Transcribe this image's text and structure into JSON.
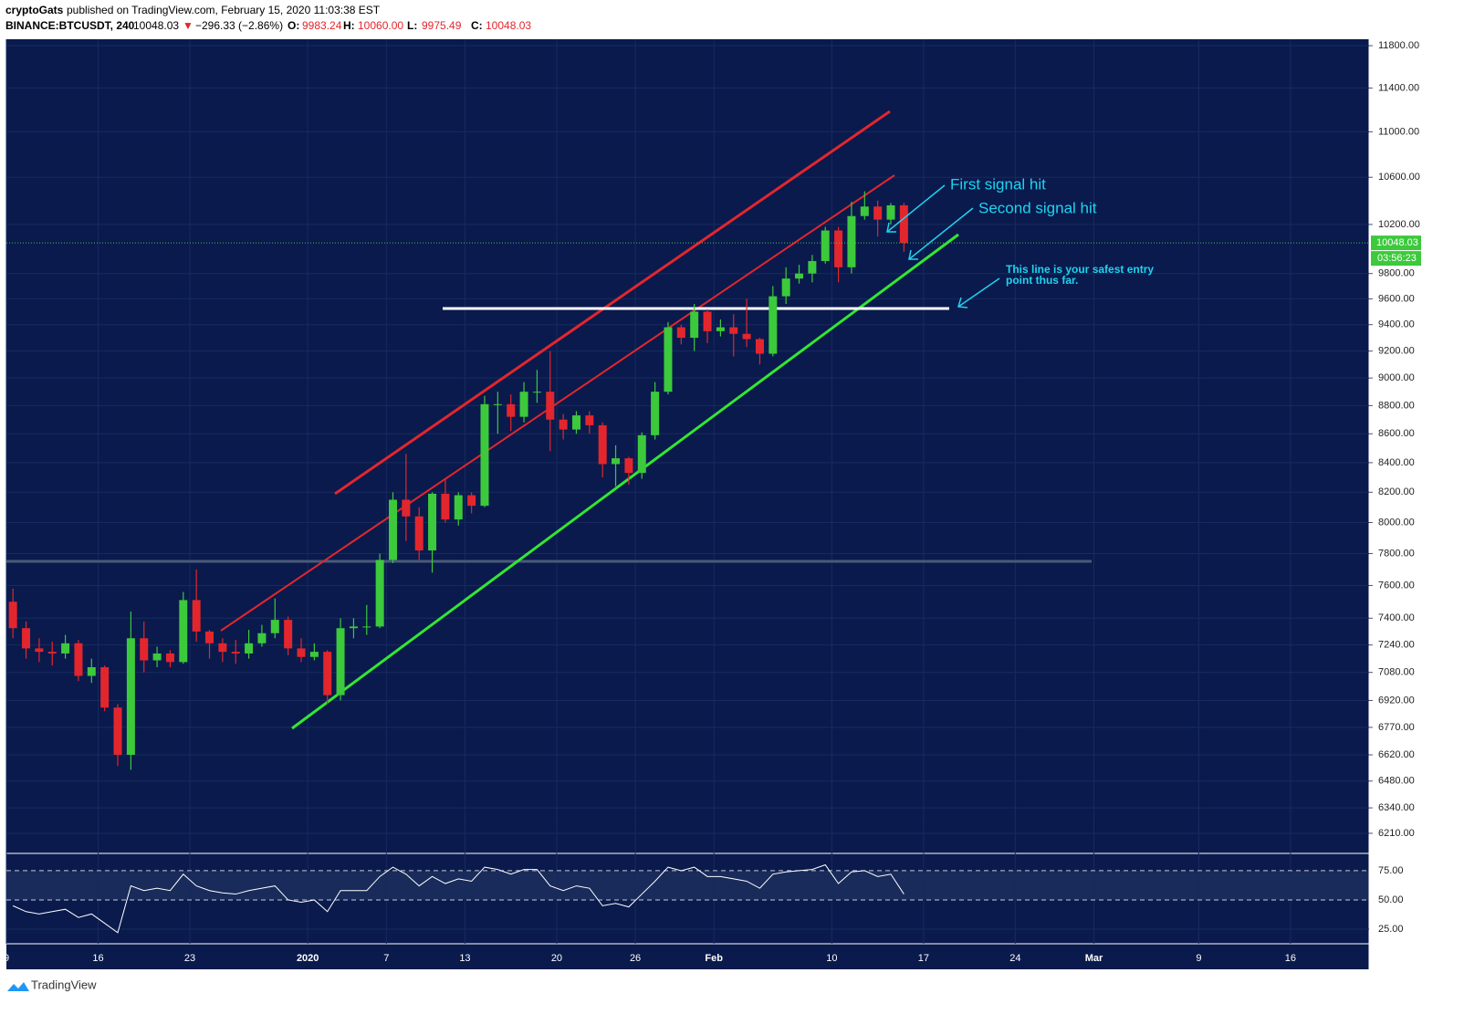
{
  "header": {
    "publisher": "cryptoGats",
    "published": "published on TradingView.com, February 15, 2020 11:03:38 EST",
    "symbol": "BINANCE:BTCUSDT, 240",
    "change": "−296.33 (−2.86%)",
    "ohlc": [
      {
        "label": "O:",
        "value": "9983.24"
      },
      {
        "label": "H:",
        "value": "10060.00"
      },
      {
        "label": "L:",
        "value": "9975.49"
      },
      {
        "label": "C:",
        "value": "10048.03"
      }
    ],
    "countdown": "03:56:23",
    "brand": "TradingView"
  },
  "chart_data": {
    "type": "candlestick",
    "log_scale": true,
    "grid": true,
    "up_color": "#3cc93c",
    "down_color": "#e3262d",
    "annotations": [
      "First signal hit",
      "Second signal hit",
      "This line is your safest entry point thus far."
    ],
    "x": [
      "2019-12-09",
      "2019-12-10",
      "2019-12-11",
      "2019-12-12",
      "2019-12-13",
      "2019-12-14",
      "2019-12-15",
      "2019-12-16",
      "2019-12-17",
      "2019-12-18",
      "2019-12-19",
      "2019-12-20",
      "2019-12-21",
      "2019-12-22",
      "2019-12-23",
      "2019-12-24",
      "2019-12-25",
      "2019-12-26",
      "2019-12-27",
      "2019-12-28",
      "2019-12-29",
      "2019-12-30",
      "2019-12-31",
      "2020-01-01",
      "2020-01-02",
      "2020-01-03",
      "2020-01-04",
      "2020-01-05",
      "2020-01-06",
      "2020-01-07",
      "2020-01-08",
      "2020-01-09",
      "2020-01-10",
      "2020-01-11",
      "2020-01-12",
      "2020-01-13",
      "2020-01-14",
      "2020-01-15",
      "2020-01-16",
      "2020-01-17",
      "2020-01-18",
      "2020-01-19",
      "2020-01-20",
      "2020-01-21",
      "2020-01-22",
      "2020-01-23",
      "2020-01-24",
      "2020-01-25",
      "2020-01-26",
      "2020-01-27",
      "2020-01-28",
      "2020-01-29",
      "2020-01-30",
      "2020-01-31",
      "2020-02-01",
      "2020-02-02",
      "2020-02-03",
      "2020-02-04",
      "2020-02-05",
      "2020-02-06",
      "2020-02-07",
      "2020-02-08",
      "2020-02-09",
      "2020-02-10",
      "2020-02-11",
      "2020-02-12",
      "2020-02-13",
      "2020-02-14",
      "2020-02-15"
    ],
    "open": [
      7500,
      7340,
      7220,
      7200,
      7190,
      7250,
      7060,
      7110,
      6880,
      6620,
      7280,
      7150,
      7190,
      7140,
      7510,
      7320,
      7250,
      7200,
      7190,
      7250,
      7310,
      7390,
      7220,
      7170,
      7200,
      6950,
      7340,
      7350,
      7350,
      7760,
      8150,
      8040,
      7820,
      8190,
      8020,
      8180,
      8110,
      8810,
      8810,
      8720,
      8900,
      8900,
      8700,
      8630,
      8730,
      8660,
      8390,
      8430,
      8330,
      8590,
      8900,
      9380,
      9300,
      9500,
      9350,
      9380,
      9330,
      9290,
      9180,
      9620,
      9760,
      9800,
      9900,
      10150,
      9850,
      10270,
      10350,
      10240,
      10360
    ],
    "high": [
      7580,
      7380,
      7280,
      7260,
      7300,
      7270,
      7160,
      7120,
      6900,
      7440,
      7380,
      7230,
      7210,
      7560,
      7700,
      7330,
      7280,
      7270,
      7330,
      7360,
      7520,
      7410,
      7280,
      7250,
      7210,
      7400,
      7400,
      7480,
      7800,
      8200,
      8460,
      8100,
      8200,
      8290,
      8200,
      8200,
      8870,
      8900,
      8880,
      8970,
      9060,
      9200,
      8740,
      8760,
      8760,
      8680,
      8520,
      8440,
      8610,
      8970,
      9420,
      9400,
      9560,
      9520,
      9440,
      9480,
      9600,
      9300,
      9700,
      9850,
      9870,
      9950,
      10180,
      10180,
      10390,
      10480,
      10400,
      10380,
      10380
    ],
    "low": [
      7280,
      7160,
      7140,
      7120,
      7160,
      7030,
      7020,
      6860,
      6560,
      6540,
      7080,
      7110,
      7110,
      7130,
      7260,
      7160,
      7140,
      7130,
      7160,
      7230,
      7280,
      7180,
      7140,
      7150,
      6900,
      6920,
      7280,
      7300,
      7340,
      7740,
      7880,
      7760,
      7680,
      8000,
      7980,
      8060,
      8100,
      8600,
      8620,
      8680,
      8820,
      8480,
      8560,
      8600,
      8600,
      8300,
      8240,
      8250,
      8290,
      8560,
      8880,
      9250,
      9200,
      9260,
      9310,
      9160,
      9230,
      9100,
      9160,
      9560,
      9720,
      9730,
      9880,
      9730,
      9800,
      10240,
      10100,
      10200,
      9975.49
    ],
    "close": [
      7340,
      7220,
      7200,
      7190,
      7250,
      7060,
      7110,
      6880,
      6620,
      7280,
      7150,
      7190,
      7140,
      7510,
      7320,
      7250,
      7200,
      7190,
      7250,
      7310,
      7390,
      7220,
      7170,
      7200,
      6950,
      7340,
      7350,
      7350,
      7760,
      8150,
      8040,
      7820,
      8190,
      8020,
      8180,
      8110,
      8810,
      8810,
      8720,
      8900,
      8900,
      8700,
      8630,
      8730,
      8660,
      8390,
      8430,
      8330,
      8590,
      8900,
      9380,
      9300,
      9500,
      9350,
      9380,
      9330,
      9290,
      9180,
      9620,
      9760,
      9800,
      9900,
      10150,
      9850,
      10270,
      10350,
      10240,
      10360,
      10048.03
    ],
    "xlim": [
      "2019-12-09",
      "2020-03-22"
    ],
    "xticks": [
      {
        "value": "2019-12-09",
        "label": "9"
      },
      {
        "value": "2019-12-16",
        "label": "16"
      },
      {
        "value": "2019-12-23",
        "label": "23"
      },
      {
        "value": "2020-01-01",
        "label": "2020"
      },
      {
        "value": "2020-01-07",
        "label": "7"
      },
      {
        "value": "2020-01-13",
        "label": "13"
      },
      {
        "value": "2020-01-20",
        "label": "20"
      },
      {
        "value": "2020-01-26",
        "label": "26"
      },
      {
        "value": "2020-02-01",
        "label": "Feb"
      },
      {
        "value": "2020-02-10",
        "label": "10"
      },
      {
        "value": "2020-02-17",
        "label": "17"
      },
      {
        "value": "2020-02-24",
        "label": "24"
      },
      {
        "value": "2020-03-01",
        "label": "Mar"
      },
      {
        "value": "2020-03-09",
        "label": "9"
      },
      {
        "value": "2020-03-16",
        "label": "16"
      }
    ],
    "ylim": [
      6109,
      11862
    ],
    "yticks": [
      {
        "value": 11800,
        "label": "11800.00"
      },
      {
        "value": 11400,
        "label": "11400.00"
      },
      {
        "value": 11000,
        "label": "11000.00"
      },
      {
        "value": 10600,
        "label": "10600.00"
      },
      {
        "value": 10200,
        "label": "10200.00"
      },
      {
        "value": 9800,
        "label": "9800.00"
      },
      {
        "value": 9600,
        "label": "9600.00"
      },
      {
        "value": 9400,
        "label": "9400.00"
      },
      {
        "value": 9200,
        "label": "9200.00"
      },
      {
        "value": 9000,
        "label": "9000.00"
      },
      {
        "value": 8800,
        "label": "8800.00"
      },
      {
        "value": 8600,
        "label": "8600.00"
      },
      {
        "value": 8400,
        "label": "8400.00"
      },
      {
        "value": 8200,
        "label": "8200.00"
      },
      {
        "value": 8000,
        "label": "8000.00"
      },
      {
        "value": 7800,
        "label": "7800.00"
      },
      {
        "value": 7600,
        "label": "7600.00"
      },
      {
        "value": 7400,
        "label": "7400.00"
      },
      {
        "value": 7240,
        "label": "7240.00"
      },
      {
        "value": 7080,
        "label": "7080.00"
      },
      {
        "value": 6920,
        "label": "6920.00"
      },
      {
        "value": 6770,
        "label": "6770.00"
      },
      {
        "value": 6620,
        "label": "6620.00"
      },
      {
        "value": 6480,
        "label": "6480.00"
      },
      {
        "value": 6340,
        "label": "6340.00"
      },
      {
        "value": 6210,
        "label": "6210.00"
      }
    ],
    "rsi": {
      "color": "#ffffff",
      "values": [
        45,
        40,
        38,
        40,
        42,
        35,
        38,
        30,
        22,
        62,
        58,
        60,
        58,
        72,
        62,
        58,
        56,
        55,
        58,
        60,
        62,
        50,
        48,
        50,
        40,
        58,
        58,
        58,
        70,
        78,
        72,
        62,
        70,
        64,
        68,
        66,
        78,
        76,
        72,
        76,
        76,
        62,
        58,
        62,
        60,
        45,
        47,
        44,
        55,
        66,
        78,
        75,
        78,
        70,
        70,
        68,
        66,
        60,
        72,
        74,
        75,
        76,
        80,
        64,
        74,
        75,
        70,
        72,
        55
      ],
      "ylim": [
        12.5,
        89
      ],
      "yticks": [
        {
          "value": 75,
          "label": "75.00"
        },
        {
          "value": 50,
          "label": "50.00"
        },
        {
          "value": 25,
          "label": "25.00"
        }
      ]
    }
  }
}
